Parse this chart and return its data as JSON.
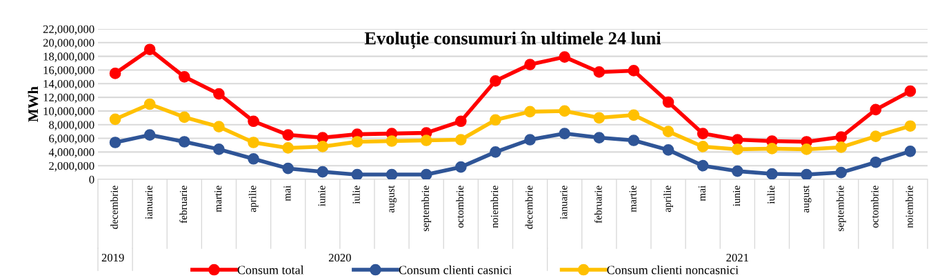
{
  "chart_data": {
    "type": "line",
    "title": "Evoluție consumuri în ultimele 24 luni",
    "ylabel": "MWh",
    "categories": [
      "decembrie",
      "ianuarie",
      "februarie",
      "martie",
      "aprilie",
      "mai",
      "iunie",
      "iulie",
      "august",
      "septembrie",
      "octombrie",
      "noiembrie",
      "decembrie",
      "ianuarie",
      "februarie",
      "martie",
      "aprilie",
      "mai",
      "iunie",
      "iulie",
      "august",
      "septembrie",
      "octombrie",
      "noiembrie"
    ],
    "annotations": [
      "2019",
      "2020",
      "2021"
    ],
    "series": [
      {
        "name": "Consum total",
        "color": "#ff0000",
        "values": [
          15500000,
          19000000,
          15000000,
          12500000,
          8500000,
          6500000,
          6100000,
          6600000,
          6700000,
          6800000,
          8500000,
          14400000,
          16800000,
          17900000,
          15700000,
          15900000,
          11300000,
          6700000,
          5800000,
          5600000,
          5500000,
          6200000,
          10200000,
          12900000
        ]
      },
      {
        "name": "Consum clienti casnici",
        "color": "#2f5597",
        "values": [
          5400000,
          6500000,
          5500000,
          4400000,
          3000000,
          1600000,
          1100000,
          700000,
          700000,
          700000,
          1800000,
          4000000,
          5800000,
          6700000,
          6100000,
          5700000,
          4300000,
          2000000,
          1200000,
          800000,
          700000,
          1000000,
          2500000,
          4100000
        ]
      },
      {
        "name": "Consum clienti noncasnici",
        "color": "#ffc000",
        "values": [
          8800000,
          11000000,
          9100000,
          7700000,
          5400000,
          4600000,
          4800000,
          5500000,
          5600000,
          5700000,
          5800000,
          8700000,
          9900000,
          10000000,
          9000000,
          9400000,
          7000000,
          4800000,
          4400000,
          4500000,
          4400000,
          4700000,
          6300000,
          7800000
        ]
      }
    ],
    "ylim": [
      0,
      22000000
    ],
    "yticks": [
      {
        "value": 0,
        "label": "0"
      },
      {
        "value": 2000000,
        "label": "2,000,000"
      },
      {
        "value": 4000000,
        "label": "4,000,000"
      },
      {
        "value": 6000000,
        "label": "6,000,000"
      },
      {
        "value": 8000000,
        "label": "8,000,000"
      },
      {
        "value": 10000000,
        "label": "10,000,000"
      },
      {
        "value": 12000000,
        "label": "12,000,000"
      },
      {
        "value": 14000000,
        "label": "14,000,000"
      },
      {
        "value": 16000000,
        "label": "16,000,000"
      },
      {
        "value": 18000000,
        "label": "18,000,000"
      },
      {
        "value": 20000000,
        "label": "20,000,000"
      },
      {
        "value": 22000000,
        "label": "22,000,000"
      }
    ],
    "grid": "y",
    "legend": "bottom",
    "marker": "circle",
    "line_style": "solid"
  }
}
